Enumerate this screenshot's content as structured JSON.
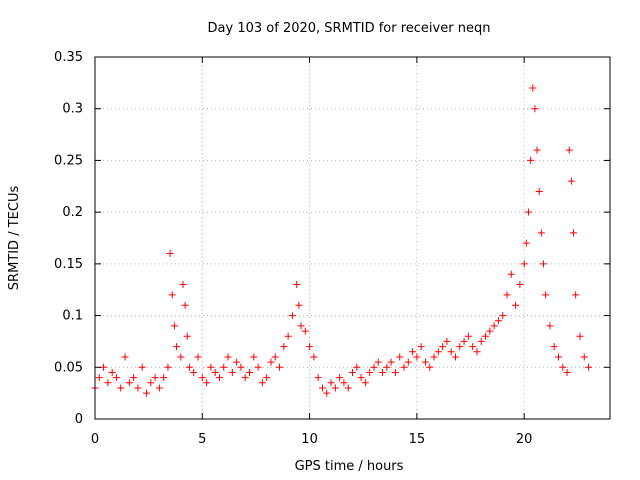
{
  "chart_data": {
    "type": "scatter",
    "title": "Day 103 of 2020, SRMTID for receiver neqn",
    "xlabel": "GPS time / hours",
    "ylabel": "SRMTID / TECUs",
    "xlim": [
      0,
      24
    ],
    "ylim": [
      0,
      0.35
    ],
    "xticks": [
      0,
      5,
      10,
      15,
      20
    ],
    "xtick_labels": [
      "0",
      "5",
      "10",
      "15",
      "20"
    ],
    "yticks": [
      0,
      0.05,
      0.1,
      0.15,
      0.2,
      0.25,
      0.3,
      0.35
    ],
    "ytick_labels": [
      "0",
      "0.05",
      "0.1",
      "0.15",
      "0.2",
      "0.25",
      "0.3",
      "0.35"
    ],
    "grid": true,
    "marker": "plus",
    "color": "#ff0000",
    "series": [
      {
        "name": "SRMTID",
        "x": [
          0.0,
          0.2,
          0.4,
          0.6,
          0.8,
          1.0,
          1.2,
          1.4,
          1.6,
          1.8,
          2.0,
          2.2,
          2.4,
          2.6,
          2.8,
          3.0,
          3.2,
          3.4,
          3.5,
          3.6,
          3.7,
          3.8,
          4.0,
          4.1,
          4.2,
          4.3,
          4.4,
          4.6,
          4.8,
          5.0,
          5.2,
          5.4,
          5.6,
          5.8,
          6.0,
          6.2,
          6.4,
          6.6,
          6.8,
          7.0,
          7.2,
          7.4,
          7.6,
          7.8,
          8.0,
          8.2,
          8.4,
          8.6,
          8.8,
          9.0,
          9.2,
          9.4,
          9.5,
          9.6,
          9.8,
          10.0,
          10.2,
          10.4,
          10.6,
          10.8,
          11.0,
          11.2,
          11.4,
          11.6,
          11.8,
          12.0,
          12.2,
          12.4,
          12.6,
          12.8,
          13.0,
          13.2,
          13.4,
          13.6,
          13.8,
          14.0,
          14.2,
          14.4,
          14.6,
          14.8,
          15.0,
          15.2,
          15.4,
          15.6,
          15.8,
          16.0,
          16.2,
          16.4,
          16.6,
          16.8,
          17.0,
          17.2,
          17.4,
          17.6,
          17.8,
          18.0,
          18.2,
          18.4,
          18.6,
          18.8,
          19.0,
          19.2,
          19.4,
          19.6,
          19.8,
          20.0,
          20.1,
          20.2,
          20.3,
          20.4,
          20.5,
          20.6,
          20.7,
          20.8,
          20.9,
          21.0,
          21.2,
          21.4,
          21.6,
          21.8,
          22.0,
          22.1,
          22.2,
          22.3,
          22.4,
          22.6,
          22.8,
          23.0
        ],
        "y": [
          0.03,
          0.04,
          0.05,
          0.035,
          0.045,
          0.04,
          0.03,
          0.06,
          0.035,
          0.04,
          0.03,
          0.05,
          0.025,
          0.035,
          0.04,
          0.03,
          0.04,
          0.05,
          0.16,
          0.12,
          0.09,
          0.07,
          0.06,
          0.13,
          0.11,
          0.08,
          0.05,
          0.045,
          0.06,
          0.04,
          0.035,
          0.05,
          0.045,
          0.04,
          0.05,
          0.06,
          0.045,
          0.055,
          0.05,
          0.04,
          0.045,
          0.06,
          0.05,
          0.035,
          0.04,
          0.055,
          0.06,
          0.05,
          0.07,
          0.08,
          0.1,
          0.13,
          0.11,
          0.09,
          0.085,
          0.07,
          0.06,
          0.04,
          0.03,
          0.025,
          0.035,
          0.03,
          0.04,
          0.035,
          0.03,
          0.045,
          0.05,
          0.04,
          0.035,
          0.045,
          0.05,
          0.055,
          0.045,
          0.05,
          0.055,
          0.045,
          0.06,
          0.05,
          0.055,
          0.065,
          0.06,
          0.07,
          0.055,
          0.05,
          0.06,
          0.065,
          0.07,
          0.075,
          0.065,
          0.06,
          0.07,
          0.075,
          0.08,
          0.07,
          0.065,
          0.075,
          0.08,
          0.085,
          0.09,
          0.095,
          0.1,
          0.12,
          0.14,
          0.11,
          0.13,
          0.15,
          0.17,
          0.2,
          0.25,
          0.32,
          0.3,
          0.26,
          0.22,
          0.18,
          0.15,
          0.12,
          0.09,
          0.07,
          0.06,
          0.05,
          0.045,
          0.26,
          0.23,
          0.18,
          0.12,
          0.08,
          0.06,
          0.05
        ]
      }
    ]
  }
}
